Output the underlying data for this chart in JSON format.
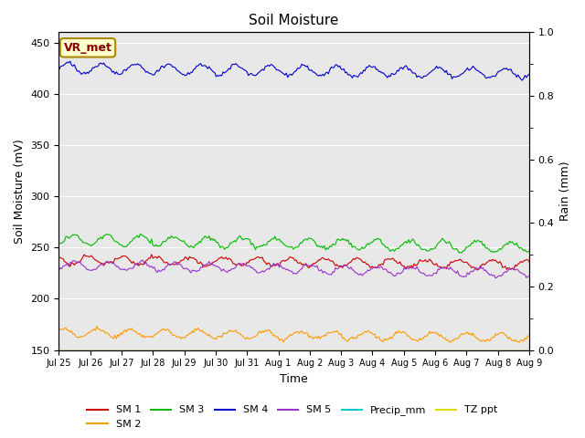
{
  "title": "Soil Moisture",
  "ylabel_left": "Soil Moisture (mV)",
  "ylabel_right": "Rain (mm)",
  "xlabel": "Time",
  "ylim_left": [
    150,
    460
  ],
  "ylim_right": [
    0.0,
    1.0
  ],
  "yticks_left": [
    150,
    200,
    250,
    300,
    350,
    400,
    450
  ],
  "yticks_right": [
    0.0,
    0.2,
    0.4,
    0.6,
    0.8,
    1.0
  ],
  "xtick_labels": [
    "Jul 25",
    "Jul 26",
    "Jul 27",
    "Jul 28",
    "Jul 29",
    "Jul 30",
    "Jul 31",
    "Aug 1",
    "Aug 2",
    "Aug 3",
    "Aug 4",
    "Aug 5",
    "Aug 6",
    "Aug 7",
    "Aug 8",
    "Aug 9"
  ],
  "bg_color": "#e8e8e8",
  "fig_color": "#ffffff",
  "sm1_color": "#cc0000",
  "sm2_color": "#ff9900",
  "sm3_color": "#00bb00",
  "sm4_color": "#0000cc",
  "sm5_color": "#9933cc",
  "precip_color": "#00cccc",
  "tz_color": "#dddd00",
  "legend_box_color": "#ffffcc",
  "legend_box_edge": "#aa8800",
  "legend_label": "VR_met",
  "n_points": 336,
  "period": 24,
  "sm1_base": 238,
  "sm1_amp": 4,
  "sm1_drift": -5,
  "sm2_base": 167,
  "sm2_amp": 4,
  "sm2_drift": -5,
  "sm3_base": 258,
  "sm3_amp": 5,
  "sm3_drift": -8,
  "sm4_base": 425,
  "sm4_amp": 5,
  "sm4_drift": -5,
  "sm5_base": 233,
  "sm5_amp": 4,
  "sm5_drift": -8
}
